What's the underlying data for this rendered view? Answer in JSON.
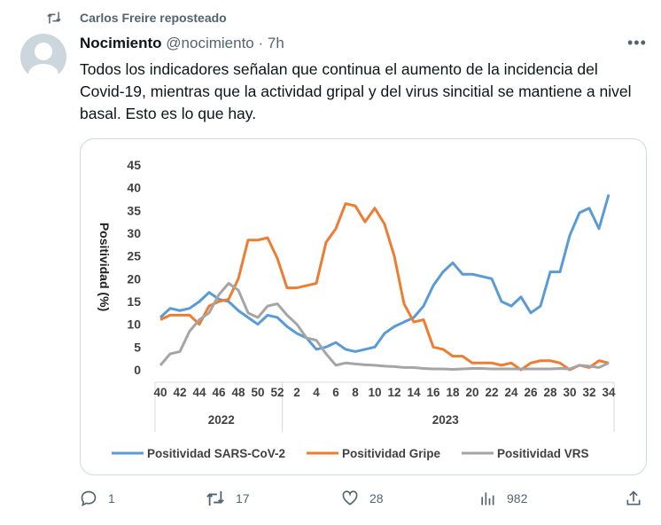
{
  "repost": {
    "label": "Carlos Freire reposteado"
  },
  "author": {
    "name": "Nocimiento",
    "handle": "@nocimiento",
    "separator": "·",
    "time": "7h"
  },
  "tweet_text": "Todos los indicadores señalan que continua el aumento de la incidencia del Covid-19, mientras que la actividad gripal y del virus sincitial se mantiene a nivel basal. Esto es lo que hay.",
  "actions": {
    "replies": "1",
    "reposts": "17",
    "likes": "28",
    "views": "982"
  },
  "chart_data": {
    "type": "line",
    "title": "",
    "ylabel": "Positividad (%)",
    "ylim": [
      0,
      45
    ],
    "yticks": [
      "0",
      "5",
      "10",
      "15",
      "20",
      "25",
      "30",
      "35",
      "40",
      "45"
    ],
    "weeks": [
      40,
      41,
      42,
      43,
      44,
      45,
      46,
      47,
      48,
      49,
      50,
      51,
      52,
      1,
      2,
      3,
      4,
      5,
      6,
      7,
      8,
      9,
      10,
      11,
      12,
      13,
      14,
      15,
      16,
      17,
      18,
      19,
      20,
      21,
      22,
      23,
      24,
      25,
      26,
      27,
      28,
      29,
      30,
      31,
      32,
      33,
      34
    ],
    "xtick_labels": [
      "40",
      "42",
      "44",
      "46",
      "48",
      "50",
      "52",
      "2",
      "4",
      "6",
      "8",
      "10",
      "12",
      "14",
      "16",
      "18",
      "20",
      "22",
      "24",
      "26",
      "28",
      "30",
      "32",
      "34"
    ],
    "years": [
      "2022",
      "2023"
    ],
    "legend_position": "bottom",
    "series": [
      {
        "name": "Positividad SARS-CoV-2",
        "color": "#5b9bd5",
        "values": [
          11.5,
          13.5,
          13,
          13.5,
          15,
          17,
          15.5,
          15,
          13,
          11.5,
          10,
          12,
          11.5,
          9.5,
          8,
          7,
          4.5,
          5,
          6,
          4.5,
          4,
          4.5,
          5,
          8,
          9.5,
          10.5,
          11.5,
          14,
          18.5,
          21.5,
          23.5,
          21,
          21,
          20.5,
          20,
          15,
          14,
          16,
          12.5,
          14,
          21.5,
          21.5,
          29.5,
          34.5,
          35.5,
          31,
          38.5
        ]
      },
      {
        "name": "Positividad Gripe",
        "color": "#ed7d31",
        "values": [
          11,
          12,
          12,
          12,
          10,
          14,
          15,
          15.5,
          20,
          28.5,
          28.5,
          29,
          24.5,
          18,
          18,
          18.5,
          19,
          28,
          31,
          36.5,
          36,
          32.5,
          35.5,
          32,
          25,
          14.5,
          10.5,
          11,
          5,
          4.5,
          3,
          3,
          1.5,
          1.5,
          1.5,
          1,
          1.5,
          0,
          1.5,
          2,
          2,
          1.5,
          0,
          1,
          0.5,
          2,
          1.5
        ]
      },
      {
        "name": "Positividad VRS",
        "color": "#a5a5a5",
        "values": [
          1,
          3.5,
          4,
          8.5,
          11,
          12.5,
          16.5,
          19,
          17.5,
          12.5,
          11.5,
          14,
          14.5,
          12,
          10,
          7,
          6.5,
          3.5,
          1,
          1.5,
          1.3,
          1.1,
          1,
          0.8,
          0.7,
          0.5,
          0.5,
          0.3,
          0.2,
          0.2,
          0.1,
          0.2,
          0.3,
          0.3,
          0.2,
          0.2,
          0.2,
          0.2,
          0.2,
          0.2,
          0.2,
          0.3,
          0.2,
          1,
          0.8,
          0.5,
          1.5
        ]
      }
    ]
  }
}
